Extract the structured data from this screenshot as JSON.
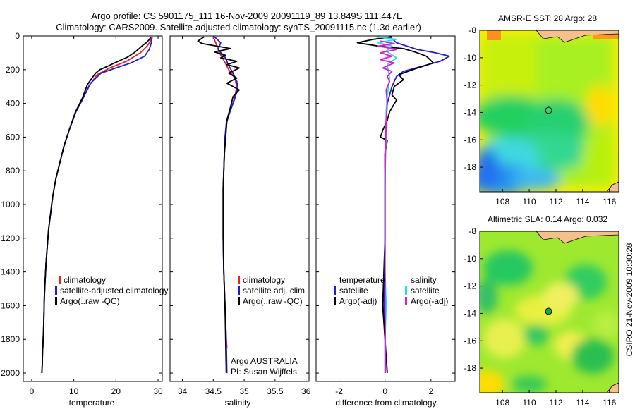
{
  "title_line1": "Argo profile: CS 5901175_111 16-Nov-2009 20091119_89 13.849S 111.447E",
  "title_line2": "Climatology: CARS2009. Satellite-adjusted climatology: synTS_20091115.nc (1.3d earlier)",
  "side_label": "CSIRO 21-Nov-2009 10:30:28",
  "colors": {
    "climatology": "#e8231c",
    "satellite": "#1f1ae0",
    "argo": "#000000",
    "sat_diff": "#19e3e3",
    "argo_adj": "#e019e0"
  },
  "chart_data": [
    {
      "type": "line",
      "name": "temperature",
      "xlabel": "temperature",
      "ylabel": "",
      "xlim": [
        -2,
        31
      ],
      "ylim": [
        2050,
        0
      ],
      "xticks": [
        0,
        10,
        20,
        30
      ],
      "yticks": [
        0,
        200,
        400,
        600,
        800,
        1000,
        1200,
        1400,
        1600,
        1800,
        2000
      ],
      "legend": [
        "climatology",
        "satellite-adjusted climatology",
        "Argo(..raw -QC)"
      ],
      "series": [
        {
          "name": "climatology",
          "color_key": "climatology",
          "points": [
            [
              28.4,
              5
            ],
            [
              28.2,
              30
            ],
            [
              27.4,
              60
            ],
            [
              25.8,
              100
            ],
            [
              22.5,
              150
            ],
            [
              18.5,
              190
            ],
            [
              15.5,
              230
            ],
            [
              13.5,
              300
            ],
            [
              12,
              380
            ],
            [
              10.5,
              450
            ],
            [
              9,
              550
            ],
            [
              7.7,
              650
            ],
            [
              6.7,
              750
            ],
            [
              5.7,
              850
            ],
            [
              5,
              950
            ],
            [
              4.5,
              1050
            ],
            [
              4,
              1150
            ],
            [
              3.7,
              1250
            ],
            [
              3.4,
              1350
            ],
            [
              3.2,
              1450
            ],
            [
              3,
              1550
            ],
            [
              2.9,
              1650
            ],
            [
              2.8,
              1750
            ],
            [
              2.7,
              1850
            ]
          ]
        },
        {
          "name": "satellite",
          "color_key": "satellite",
          "points": [
            [
              28.6,
              5
            ],
            [
              28.4,
              40
            ],
            [
              27.9,
              80
            ],
            [
              26.8,
              120
            ],
            [
              23.6,
              160
            ],
            [
              20,
              190
            ],
            [
              16.5,
              220
            ],
            [
              14,
              280
            ],
            [
              12.2,
              370
            ],
            [
              10.5,
              450
            ],
            [
              9,
              550
            ],
            [
              7.7,
              650
            ],
            [
              6.7,
              750
            ],
            [
              5.7,
              850
            ],
            [
              5,
              950
            ],
            [
              4.5,
              1050
            ],
            [
              4,
              1150
            ],
            [
              3.7,
              1250
            ],
            [
              3.4,
              1350
            ],
            [
              3.2,
              1450
            ],
            [
              3,
              1550
            ],
            [
              2.9,
              1650
            ],
            [
              2.8,
              1750
            ],
            [
              2.6,
              1850
            ],
            [
              2.5,
              1950
            ],
            [
              2.4,
              2000
            ]
          ]
        },
        {
          "name": "argo",
          "color_key": "argo",
          "points": [
            [
              28.3,
              5
            ],
            [
              27.8,
              25
            ],
            [
              27.2,
              40
            ],
            [
              26.4,
              55
            ],
            [
              25.5,
              75
            ],
            [
              24.3,
              100
            ],
            [
              22.8,
              125
            ],
            [
              20.5,
              150
            ],
            [
              18,
              180
            ],
            [
              16.2,
              200
            ],
            [
              15.2,
              220
            ],
            [
              14.3,
              250
            ],
            [
              13.2,
              290
            ],
            [
              12,
              370
            ],
            [
              10.4,
              450
            ],
            [
              9,
              550
            ],
            [
              7.7,
              650
            ],
            [
              6.7,
              750
            ],
            [
              5.7,
              850
            ],
            [
              5,
              950
            ],
            [
              4.5,
              1050
            ],
            [
              4,
              1150
            ],
            [
              3.7,
              1250
            ],
            [
              3.4,
              1350
            ],
            [
              3.2,
              1450
            ],
            [
              3,
              1550
            ],
            [
              2.9,
              1650
            ],
            [
              2.8,
              1750
            ],
            [
              2.6,
              1850
            ],
            [
              2.5,
              1950
            ],
            [
              2.4,
              2000
            ]
          ]
        }
      ]
    },
    {
      "type": "line",
      "name": "salinity",
      "xlabel": "salinity",
      "ylabel": "",
      "xlim": [
        33.8,
        36.05
      ],
      "ylim": [
        2050,
        0
      ],
      "xticks": [
        34,
        34.5,
        35,
        35.5,
        36
      ],
      "legend": [
        "climatology",
        "satellite adj. clim.",
        "Argo(..raw -QC)"
      ],
      "annotations": [
        "Argo AUSTRALIA",
        "PI: Susan Wijffels"
      ],
      "series": [
        {
          "name": "climatology",
          "color_key": "climatology",
          "points": [
            [
              34.5,
              5
            ],
            [
              34.55,
              50
            ],
            [
              34.6,
              100
            ],
            [
              34.68,
              150
            ],
            [
              34.75,
              200
            ],
            [
              34.85,
              250
            ],
            [
              34.88,
              300
            ],
            [
              34.85,
              360
            ],
            [
              34.8,
              420
            ],
            [
              34.72,
              500
            ],
            [
              34.7,
              600
            ],
            [
              34.68,
              700
            ],
            [
              34.67,
              800
            ],
            [
              34.66,
              900
            ],
            [
              34.66,
              1000
            ],
            [
              34.66,
              1200
            ],
            [
              34.67,
              1400
            ],
            [
              34.69,
              1600
            ],
            [
              34.71,
              1800
            ],
            [
              34.72,
              1850
            ]
          ]
        },
        {
          "name": "satellite",
          "color_key": "satellite",
          "points": [
            [
              34.52,
              5
            ],
            [
              34.62,
              40
            ],
            [
              34.58,
              80
            ],
            [
              34.7,
              130
            ],
            [
              34.74,
              170
            ],
            [
              34.82,
              220
            ],
            [
              34.88,
              270
            ],
            [
              34.9,
              310
            ],
            [
              34.84,
              380
            ],
            [
              34.77,
              450
            ],
            [
              34.71,
              520
            ],
            [
              34.69,
              600
            ],
            [
              34.68,
              700
            ],
            [
              34.67,
              800
            ],
            [
              34.66,
              900
            ],
            [
              34.66,
              1000
            ],
            [
              34.66,
              1200
            ],
            [
              34.67,
              1400
            ],
            [
              34.69,
              1600
            ],
            [
              34.71,
              1800
            ],
            [
              34.72,
              2000
            ]
          ]
        },
        {
          "name": "argo",
          "color_key": "argo",
          "points": [
            [
              34.35,
              5
            ],
            [
              34.25,
              30
            ],
            [
              34.32,
              45
            ],
            [
              34.55,
              60
            ],
            [
              34.78,
              75
            ],
            [
              34.52,
              95
            ],
            [
              34.7,
              115
            ],
            [
              34.62,
              130
            ],
            [
              34.88,
              150
            ],
            [
              34.72,
              170
            ],
            [
              34.92,
              190
            ],
            [
              34.75,
              220
            ],
            [
              34.88,
              250
            ],
            [
              34.72,
              280
            ],
            [
              34.92,
              320
            ],
            [
              34.82,
              360
            ],
            [
              34.78,
              420
            ],
            [
              34.72,
              500
            ],
            [
              34.7,
              600
            ],
            [
              34.68,
              700
            ],
            [
              34.67,
              800
            ],
            [
              34.66,
              900
            ],
            [
              34.66,
              1000
            ],
            [
              34.66,
              1200
            ],
            [
              34.67,
              1400
            ],
            [
              34.69,
              1600
            ],
            [
              34.7,
              1800
            ],
            [
              34.71,
              2000
            ]
          ]
        }
      ]
    },
    {
      "type": "line",
      "name": "difference",
      "xlabel": "difference from climatology",
      "ylabel": "",
      "xlim": [
        -3,
        3.05
      ],
      "ylim": [
        2050,
        0
      ],
      "xticks": [
        -2,
        0,
        2
      ],
      "legend_left": [
        "temperature",
        "satellite",
        "Argo(-adj)"
      ],
      "legend_right": [
        "salinity",
        "satellite",
        "Argo(-adj)"
      ],
      "series": [
        {
          "name": "temperature satellite",
          "color_key": "satellite",
          "points": [
            [
              0.2,
              5
            ],
            [
              0.5,
              40
            ],
            [
              1.4,
              80
            ],
            [
              2.2,
              100
            ],
            [
              2.8,
              120
            ],
            [
              2.4,
              150
            ],
            [
              1.6,
              180
            ],
            [
              0.8,
              210
            ],
            [
              0.5,
              240
            ],
            [
              0.3,
              300
            ],
            [
              0.1,
              400
            ],
            [
              0.05,
              500
            ],
            [
              0,
              700
            ],
            [
              0,
              1000
            ],
            [
              0,
              1300
            ],
            [
              -0.05,
              1600
            ],
            [
              0,
              1800
            ],
            [
              0,
              2000
            ]
          ]
        },
        {
          "name": "temperature argo",
          "color_key": "argo",
          "points": [
            [
              0.3,
              5
            ],
            [
              -0.5,
              20
            ],
            [
              -1.2,
              40
            ],
            [
              -0.3,
              60
            ],
            [
              0.8,
              75
            ],
            [
              1.3,
              95
            ],
            [
              1.8,
              120
            ],
            [
              2.1,
              160
            ],
            [
              1.2,
              200
            ],
            [
              0.6,
              230
            ],
            [
              0.8,
              260
            ],
            [
              0.4,
              300
            ],
            [
              0.3,
              350
            ],
            [
              0.5,
              380
            ],
            [
              0.2,
              450
            ],
            [
              0.1,
              500
            ],
            [
              -0.1,
              560
            ],
            [
              -0.2,
              600
            ],
            [
              0.1,
              620
            ],
            [
              0,
              700
            ],
            [
              0,
              900
            ],
            [
              0,
              1200
            ],
            [
              -0.1,
              1600
            ],
            [
              0,
              1800
            ],
            [
              0.1,
              2000
            ]
          ]
        },
        {
          "name": "salinity satellite",
          "color_key": "sat_diff",
          "points": [
            [
              -0.4,
              5
            ],
            [
              0.5,
              20
            ],
            [
              -0.3,
              40
            ],
            [
              0.3,
              60
            ],
            [
              0.05,
              90
            ],
            [
              0.5,
              130
            ],
            [
              0.1,
              170
            ],
            [
              0.2,
              250
            ],
            [
              0.1,
              350
            ],
            [
              0.05,
              450
            ],
            [
              0.05,
              600
            ],
            [
              0,
              800
            ],
            [
              0,
              1100
            ],
            [
              0,
              1400
            ],
            [
              0.05,
              1600
            ],
            [
              0,
              1800
            ],
            [
              0,
              2000
            ]
          ]
        },
        {
          "name": "salinity argo",
          "color_key": "argo_adj",
          "points": [
            [
              -0.2,
              30
            ],
            [
              0.4,
              45
            ],
            [
              -0.3,
              60
            ],
            [
              0.5,
              80
            ],
            [
              -0.2,
              100
            ],
            [
              0.3,
              120
            ],
            [
              -0.2,
              140
            ],
            [
              0.4,
              160
            ],
            [
              -0.1,
              190
            ],
            [
              0.3,
              210
            ],
            [
              0.1,
              240
            ],
            [
              0.2,
              270
            ],
            [
              0.05,
              320
            ],
            [
              0.1,
              400
            ],
            [
              0.05,
              500
            ],
            [
              0.02,
              700
            ],
            [
              0,
              900
            ],
            [
              0,
              1200
            ],
            [
              0,
              1600
            ],
            [
              0.02,
              1900
            ],
            [
              0.02,
              2000
            ]
          ]
        }
      ]
    },
    {
      "type": "heatmap",
      "name": "sst_map",
      "title": "AMSR-E SST: 28 Argo: 28",
      "xlim": [
        106.3,
        116.7
      ],
      "ylim": [
        -19.8,
        -8
      ],
      "xticks": [
        108,
        110,
        112,
        114,
        116
      ],
      "yticks": [
        -8,
        -10,
        -12,
        -14,
        -16,
        -18
      ],
      "marker": {
        "lon": 111.447,
        "lat": -13.849,
        "filled": false
      }
    },
    {
      "type": "heatmap",
      "name": "sla_map",
      "title": "Altimetric SLA: 0.14 Argo: 0.032",
      "xlim": [
        106.3,
        116.7
      ],
      "ylim": [
        -19.8,
        -8
      ],
      "xticks": [
        108,
        110,
        112,
        114,
        116
      ],
      "yticks": [
        -8,
        -10,
        -12,
        -14,
        -16,
        -18
      ],
      "marker": {
        "lon": 111.447,
        "lat": -13.849,
        "filled": true
      }
    }
  ]
}
